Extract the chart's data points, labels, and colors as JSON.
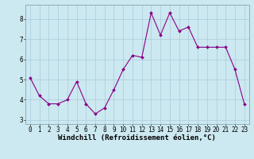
{
  "x": [
    0,
    1,
    2,
    3,
    4,
    5,
    6,
    7,
    8,
    9,
    10,
    11,
    12,
    13,
    14,
    15,
    16,
    17,
    18,
    19,
    20,
    21,
    22,
    23
  ],
  "y": [
    5.1,
    4.2,
    3.8,
    3.8,
    4.0,
    4.9,
    3.8,
    3.3,
    3.6,
    4.5,
    5.5,
    6.2,
    6.1,
    8.3,
    7.2,
    8.3,
    7.4,
    7.6,
    6.6,
    6.6,
    6.6,
    6.6,
    5.5,
    3.8
  ],
  "line_color": "#880088",
  "marker": "D",
  "markersize": 2.0,
  "linewidth": 0.8,
  "xlabel": "Windchill (Refroidissement éolien,°C)",
  "xlabel_fontsize": 6.5,
  "ylim": [
    2.8,
    8.7
  ],
  "xlim": [
    -0.5,
    23.5
  ],
  "yticks": [
    3,
    4,
    5,
    6,
    7,
    8
  ],
  "xticks": [
    0,
    1,
    2,
    3,
    4,
    5,
    6,
    7,
    8,
    9,
    10,
    11,
    12,
    13,
    14,
    15,
    16,
    17,
    18,
    19,
    20,
    21,
    22,
    23
  ],
  "tick_fontsize": 5.5,
  "background_color": "#cce8f0",
  "grid_color": "#aaccdd",
  "spine_color": "#7799aa"
}
